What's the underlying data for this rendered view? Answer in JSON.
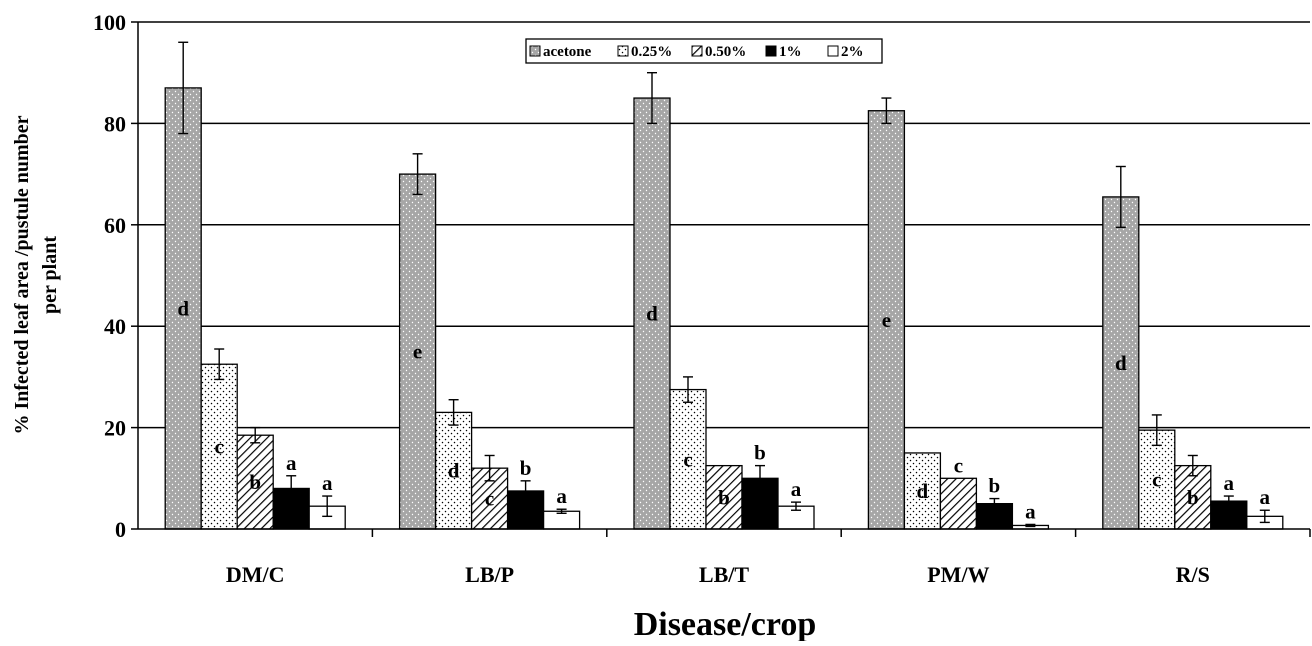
{
  "chart_data": {
    "type": "bar",
    "title": "",
    "xlabel": "Disease/crop",
    "ylabel": "% Infected leaf area /pustule number per plant",
    "ylabel_lines": [
      "% Infected leaf area /pustule number",
      "per plant"
    ],
    "ylim": [
      0,
      100
    ],
    "yticks": [
      0,
      20,
      40,
      60,
      80,
      100
    ],
    "grid": true,
    "legend_position": "top-center",
    "categories": [
      "DM/C",
      "LB/P",
      "LB/T",
      "PM/W",
      "R/S"
    ],
    "series": [
      {
        "name": "acetone",
        "pattern": "dotted-gray",
        "values": [
          87,
          70,
          85,
          82.5,
          65.5
        ],
        "errors": [
          9,
          4,
          5,
          2.5,
          6
        ],
        "letters": [
          "d",
          "e",
          "d",
          "e",
          "d"
        ]
      },
      {
        "name": "0.25%",
        "pattern": "dotted-white",
        "values": [
          32.5,
          23,
          27.5,
          15,
          19.5
        ],
        "errors": [
          3,
          2.5,
          2.5,
          0,
          3
        ],
        "letters": [
          "c",
          "d",
          "c",
          "d",
          "c"
        ]
      },
      {
        "name": "0.50%",
        "pattern": "hatched",
        "values": [
          18.5,
          12,
          12.5,
          10,
          12.5
        ],
        "errors": [
          1.5,
          2.5,
          0,
          0,
          2
        ],
        "letters": [
          "b",
          "c",
          "b",
          "c",
          "b"
        ]
      },
      {
        "name": "1%",
        "pattern": "solid-black",
        "values": [
          8,
          7.5,
          10,
          5,
          5.5
        ],
        "errors": [
          2.5,
          2,
          2.5,
          1,
          1
        ],
        "letters": [
          "a",
          "b",
          "b",
          "b",
          "a"
        ]
      },
      {
        "name": "2%",
        "pattern": "solid-white",
        "values": [
          4.5,
          3.5,
          4.5,
          0.7,
          2.5
        ],
        "errors": [
          2,
          0.4,
          0.8,
          0.2,
          1.2
        ],
        "letters": [
          "a",
          "a",
          "a",
          "a",
          "a"
        ]
      }
    ]
  },
  "colors": {
    "acetone": "#a6a6a6",
    "grid": "#000000",
    "axis": "#000000"
  }
}
